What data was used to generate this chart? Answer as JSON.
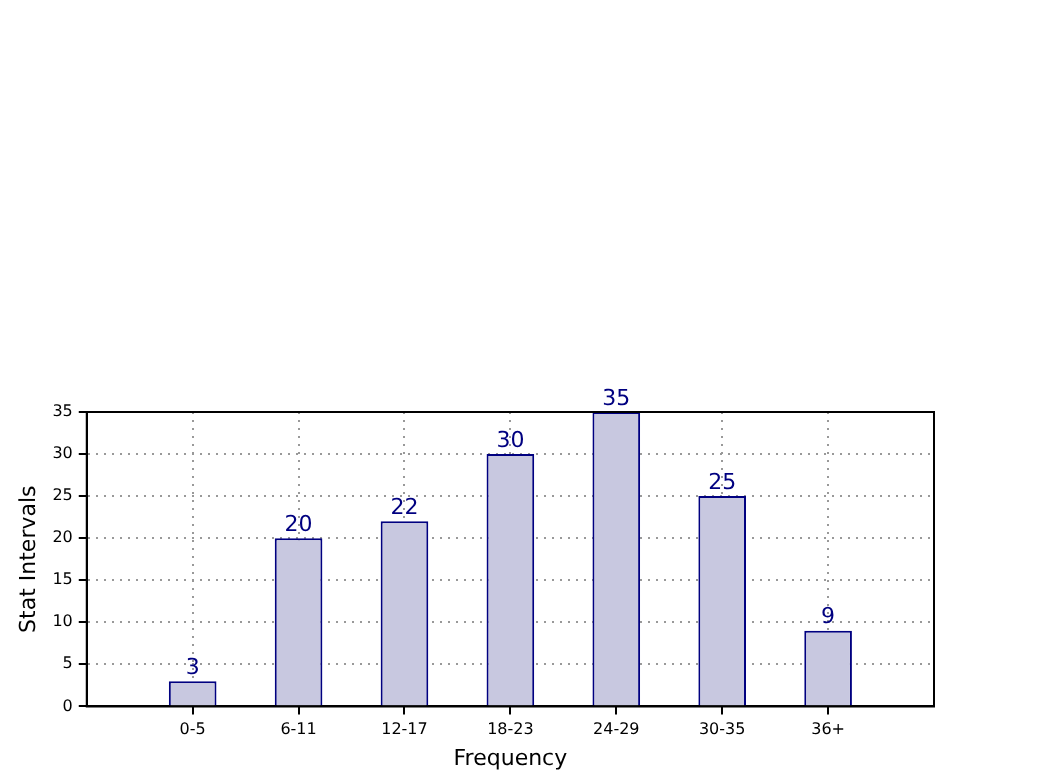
{
  "chart_data": {
    "type": "bar",
    "xlabel": "Frequency",
    "ylabel": "Stat Intervals",
    "categories": [
      "0-5",
      "6-11",
      "12-17",
      "18-23",
      "24-29",
      "30-35",
      "36+"
    ],
    "values": [
      3,
      20,
      22,
      30,
      35,
      25,
      9
    ],
    "color": "#c8c8e0",
    "ylim": [
      0,
      35
    ],
    "yticks": [
      0,
      5,
      10,
      15,
      20,
      25,
      30,
      35
    ],
    "grid": true,
    "data_labels": true
  }
}
